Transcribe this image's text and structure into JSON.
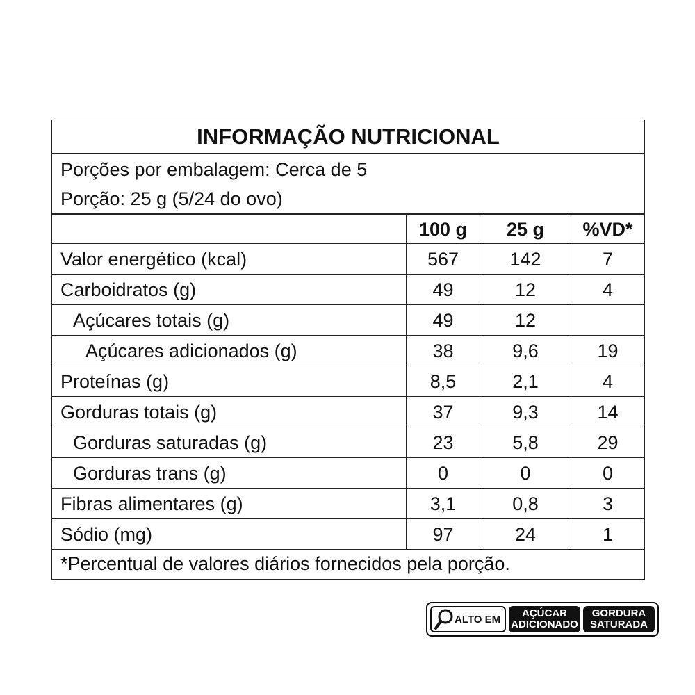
{
  "title": "INFORMAÇÃO NUTRICIONAL",
  "servings_per_package": "Porções por embalagem: Cerca de 5",
  "serving_size": "Porção: 25 g (5/24 do ovo)",
  "columns": [
    "",
    "100 g",
    "25 g",
    "%VD*"
  ],
  "rows": [
    {
      "name": "Valor energético (kcal)",
      "indent": 0,
      "v100": "567",
      "v25": "142",
      "vd": "7"
    },
    {
      "name": "Carboidratos (g)",
      "indent": 0,
      "v100": "49",
      "v25": "12",
      "vd": "4"
    },
    {
      "name": "Açúcares totais (g)",
      "indent": 1,
      "v100": "49",
      "v25": "12",
      "vd": ""
    },
    {
      "name": "Açúcares adicionados (g)",
      "indent": 2,
      "v100": "38",
      "v25": "9,6",
      "vd": "19"
    },
    {
      "name": "Proteínas (g)",
      "indent": 0,
      "v100": "8,5",
      "v25": "2,1",
      "vd": "4"
    },
    {
      "name": "Gorduras totais (g)",
      "indent": 0,
      "v100": "37",
      "v25": "9,3",
      "vd": "14"
    },
    {
      "name": "Gorduras saturadas (g)",
      "indent": 1,
      "v100": "23",
      "v25": "5,8",
      "vd": "29"
    },
    {
      "name": "Gorduras trans (g)",
      "indent": 1,
      "v100": "0",
      "v25": "0",
      "vd": "0"
    },
    {
      "name": "Fibras alimentares (g)",
      "indent": 0,
      "v100": "3,1",
      "v25": "0,8",
      "vd": "3"
    },
    {
      "name": "Sódio (mg)",
      "indent": 0,
      "v100": "97",
      "v25": "24",
      "vd": "1"
    }
  ],
  "footnote": "*Percentual de valores diários fornecidos pela porção.",
  "warning_label": {
    "icon": "magnifier-icon",
    "prefix": "ALTO EM",
    "items": [
      [
        "AÇÚCAR",
        "ADICIONADO"
      ],
      [
        "GORDURA",
        "SATURADA"
      ]
    ]
  }
}
